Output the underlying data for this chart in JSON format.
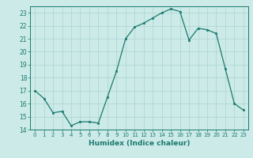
{
  "x": [
    0,
    1,
    2,
    3,
    4,
    5,
    6,
    7,
    8,
    9,
    10,
    11,
    12,
    13,
    14,
    15,
    16,
    17,
    18,
    19,
    20,
    21,
    22,
    23
  ],
  "y": [
    17.0,
    16.4,
    15.3,
    15.4,
    14.3,
    14.6,
    14.6,
    14.5,
    16.5,
    18.5,
    21.0,
    21.9,
    22.2,
    22.6,
    23.0,
    23.3,
    23.1,
    20.9,
    21.8,
    21.7,
    21.4,
    18.7,
    16.0,
    15.5
  ],
  "xlabel": "Humidex (Indice chaleur)",
  "xlim": [
    -0.5,
    23.5
  ],
  "ylim": [
    14,
    23.5
  ],
  "yticks": [
    14,
    15,
    16,
    17,
    18,
    19,
    20,
    21,
    22,
    23
  ],
  "xticks": [
    0,
    1,
    2,
    3,
    4,
    5,
    6,
    7,
    8,
    9,
    10,
    11,
    12,
    13,
    14,
    15,
    16,
    17,
    18,
    19,
    20,
    21,
    22,
    23
  ],
  "line_color": "#1a7a6e",
  "bg_color": "#cceae8",
  "grid_color": "#aad4d0",
  "fig_bg": "#cceae8"
}
